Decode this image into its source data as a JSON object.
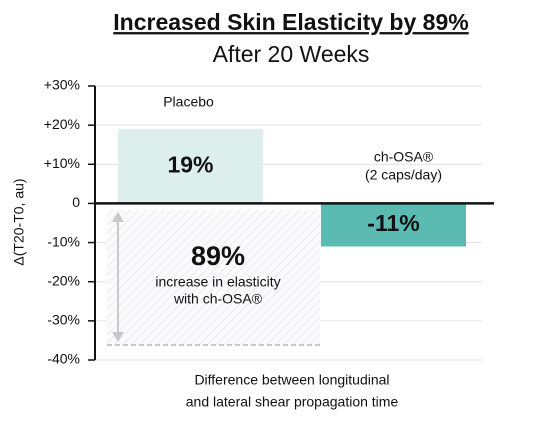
{
  "chart_data": {
    "type": "bar",
    "title": "Increased Skin Elasticity by 89%",
    "subtitle": "After 20 Weeks",
    "y_label": "Δ(T20-T0, au)",
    "x_label": [
      "Difference between longitudinal",
      "and lateral shear propagation time"
    ],
    "categories": [
      "Placebo",
      [
        "ch-OSA®",
        "(2 caps/day)"
      ]
    ],
    "values": [
      19,
      -11
    ],
    "value_labels": [
      "19%",
      "-11%"
    ],
    "colors": [
      "#dcefed",
      "#5bbab2"
    ],
    "annotation": [
      "89%",
      "increase in elasticity",
      "with ch-OSA®"
    ],
    "ylim": [
      -40,
      30
    ],
    "yticks": [
      {
        "value": -40,
        "label": "-40%"
      },
      {
        "value": -30,
        "label": "-30%"
      },
      {
        "value": -20,
        "label": "-20%"
      },
      {
        "value": -10,
        "label": "-10%"
      },
      0,
      {
        "value": 10,
        "label": "+10%"
      },
      {
        "value": 20,
        "label": "+20%"
      },
      {
        "value": 30,
        "label": "+30%"
      }
    ],
    "grid": true
  }
}
